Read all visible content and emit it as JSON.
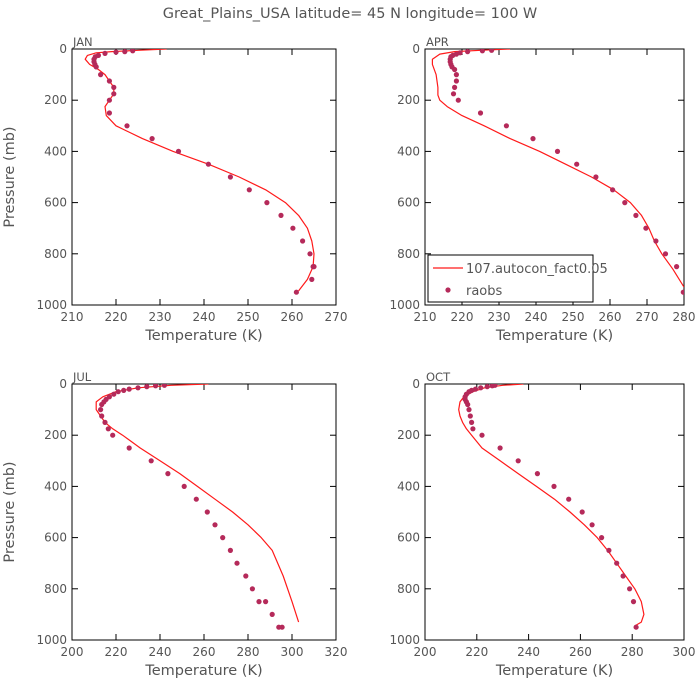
{
  "title": "Great_Plains_USA   latitude= 45 N longitude= 100 W",
  "legend": {
    "model_label": "107.autocon_fact0.05",
    "obs_label": "raobs"
  },
  "colors": {
    "model_line": "#ff1a1a",
    "obs_points": "#b52a5a",
    "axes": "#000000",
    "text": "#555555"
  },
  "chart_data": [
    {
      "type": "line",
      "panel": "JAN",
      "xlabel": "Temperature (K)",
      "ylabel": "Pressure (mb)",
      "xlim": [
        210,
        270
      ],
      "ylim": [
        1000,
        0
      ],
      "xticks": [
        210,
        220,
        230,
        240,
        250,
        260,
        270
      ],
      "yticks": [
        0,
        200,
        400,
        600,
        800,
        1000
      ],
      "series": [
        {
          "name": "107.autocon_fact0.05",
          "kind": "line",
          "x": [
            231.5,
            225,
            219,
            215.5,
            213.5,
            213,
            214,
            216,
            217.5,
            218.5,
            219.5,
            219.5,
            218.5,
            217.5,
            217.8,
            220,
            226,
            233,
            241,
            248,
            254,
            258.5,
            261.5,
            263.5,
            264.5,
            265,
            264.8,
            263.5,
            261.5
          ],
          "y": [
            0,
            5,
            10,
            15,
            25,
            40,
            60,
            80,
            100,
            125,
            150,
            175,
            200,
            225,
            260,
            300,
            350,
            400,
            450,
            500,
            550,
            600,
            650,
            700,
            750,
            800,
            850,
            900,
            945
          ]
        },
        {
          "name": "raobs",
          "kind": "points",
          "x": [
            223.8,
            222,
            220,
            217.5,
            216,
            215.3,
            215,
            215,
            215.2,
            215.5,
            216.5,
            218.5,
            219.5,
            219.5,
            218.5,
            218.5,
            222.5,
            228.2,
            234.2,
            241,
            246,
            250.3,
            254.3,
            257.5,
            260.2,
            262.4,
            264.1,
            264.8,
            265,
            264.5,
            261
          ],
          "y": [
            7,
            10,
            12,
            17,
            25,
            30,
            40,
            50,
            60,
            70,
            100,
            125,
            150,
            175,
            200,
            250,
            300,
            350,
            400,
            450,
            500,
            550,
            600,
            650,
            700,
            750,
            800,
            850,
            850,
            900,
            950
          ]
        }
      ]
    },
    {
      "type": "line",
      "panel": "APR",
      "xlabel": "Temperature (K)",
      "ylabel": "",
      "xlim": [
        210,
        280
      ],
      "ylim": [
        1000,
        0
      ],
      "xticks": [
        210,
        220,
        230,
        240,
        250,
        260,
        270,
        280
      ],
      "yticks": [
        0,
        200,
        400,
        600,
        800,
        1000
      ],
      "series": [
        {
          "name": "107.autocon_fact0.05",
          "kind": "line",
          "x": [
            233,
            225,
            218,
            214,
            212,
            212,
            213,
            213.5,
            213.5,
            214,
            216,
            220,
            226,
            233,
            241,
            248,
            255,
            261,
            265.5,
            268.5,
            270.5,
            272,
            274,
            277,
            280
          ],
          "y": [
            0,
            5,
            10,
            20,
            40,
            60,
            100,
            150,
            180,
            200,
            225,
            260,
            300,
            350,
            400,
            450,
            500,
            550,
            600,
            650,
            700,
            750,
            800,
            860,
            930
          ]
        },
        {
          "name": "raobs",
          "kind": "points",
          "x": [
            228,
            225.5,
            221.5,
            219.5,
            218.5,
            217.5,
            217,
            216.8,
            216.8,
            217,
            217.3,
            218,
            218.5,
            218.5,
            218,
            217.7,
            219,
            225,
            232,
            239.2,
            245.8,
            251,
            256.2,
            260.7,
            264,
            267,
            269.7,
            272.4,
            275,
            278,
            279.8
          ],
          "y": [
            5,
            7,
            10,
            15,
            20,
            25,
            30,
            40,
            50,
            60,
            70,
            80,
            100,
            125,
            150,
            175,
            200,
            250,
            300,
            350,
            400,
            450,
            500,
            550,
            600,
            650,
            700,
            750,
            800,
            850,
            950
          ]
        }
      ]
    },
    {
      "type": "line",
      "panel": "JUL",
      "xlabel": "Temperature (K)",
      "ylabel": "Pressure (mb)",
      "xlim": [
        200,
        320
      ],
      "ylim": [
        1000,
        0
      ],
      "xticks": [
        200,
        220,
        240,
        260,
        280,
        300,
        320
      ],
      "yticks": [
        0,
        200,
        400,
        600,
        800,
        1000
      ],
      "series": [
        {
          "name": "107.autocon_fact0.05",
          "kind": "line",
          "x": [
            262,
            245,
            230,
            220,
            214,
            211,
            211,
            213,
            215,
            218.5,
            223,
            231,
            240,
            249,
            257,
            265,
            273,
            280,
            286,
            291,
            296,
            300,
            303
          ],
          "y": [
            0,
            5,
            15,
            30,
            50,
            70,
            100,
            125,
            150,
            175,
            200,
            250,
            300,
            350,
            400,
            450,
            500,
            550,
            600,
            650,
            750,
            850,
            930
          ]
        },
        {
          "name": "raobs",
          "kind": "points",
          "x": [
            242,
            238,
            234,
            230,
            226,
            223.5,
            221,
            219,
            217,
            215.5,
            214.5,
            213.5,
            213,
            213.5,
            215,
            216.5,
            218.5,
            226,
            236,
            243.6,
            251,
            256.5,
            261.5,
            265,
            268.5,
            272,
            275,
            279,
            282,
            285,
            288,
            291,
            294,
            295.5
          ],
          "y": [
            5,
            7,
            10,
            15,
            20,
            25,
            30,
            40,
            50,
            60,
            70,
            80,
            100,
            125,
            150,
            175,
            200,
            250,
            300,
            350,
            400,
            450,
            500,
            550,
            600,
            650,
            700,
            750,
            800,
            850,
            850,
            900,
            950,
            950
          ]
        }
      ]
    },
    {
      "type": "line",
      "panel": "OCT",
      "xlabel": "Temperature (K)",
      "ylabel": "",
      "xlim": [
        200,
        300
      ],
      "ylim": [
        1000,
        0
      ],
      "xticks": [
        200,
        220,
        240,
        260,
        280,
        300
      ],
      "yticks": [
        0,
        200,
        400,
        600,
        800,
        1000
      ],
      "series": [
        {
          "name": "107.autocon_fact0.05",
          "kind": "line",
          "x": [
            238,
            230,
            223,
            218.5,
            215,
            213.5,
            213,
            213.5,
            214.5,
            216,
            218,
            222,
            229,
            236,
            243,
            250,
            256,
            261.5,
            266.5,
            270.5,
            274,
            277.5,
            281,
            283.5,
            284.5,
            283.5,
            281
          ],
          "y": [
            0,
            5,
            15,
            30,
            50,
            70,
            100,
            125,
            150,
            175,
            200,
            250,
            300,
            350,
            400,
            450,
            500,
            550,
            600,
            650,
            700,
            750,
            800,
            850,
            900,
            930,
            945
          ]
        },
        {
          "name": "raobs",
          "kind": "points",
          "x": [
            227,
            226,
            224,
            221.5,
            219.5,
            218,
            217,
            216,
            215.5,
            215.5,
            216,
            216.5,
            217,
            217.5,
            218,
            218.5,
            222,
            229,
            236,
            243.4,
            249.8,
            255.5,
            260.7,
            264.5,
            268.2,
            271,
            274,
            276.5,
            279,
            280.5,
            281.5
          ],
          "y": [
            5,
            7,
            10,
            15,
            20,
            25,
            30,
            40,
            50,
            60,
            70,
            80,
            100,
            125,
            150,
            175,
            200,
            250,
            300,
            350,
            400,
            450,
            500,
            550,
            600,
            650,
            700,
            750,
            800,
            850,
            950
          ]
        }
      ]
    }
  ]
}
